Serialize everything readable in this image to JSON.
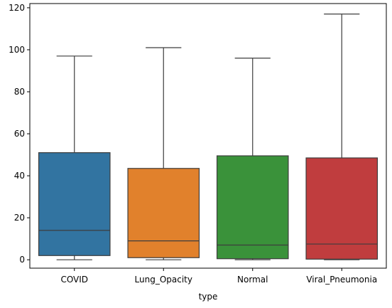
{
  "chart_data": {
    "type": "box",
    "xlabel": "type",
    "ylabel": "",
    "ylim": [
      -4,
      122
    ],
    "yticks": [
      0,
      20,
      40,
      60,
      80,
      100,
      120
    ],
    "categories": [
      "COVID",
      "Lung_Opacity",
      "Normal",
      "Viral_Pneumonia"
    ],
    "boxes": [
      {
        "category": "COVID",
        "min": 0,
        "q1": 2,
        "median": 14,
        "q3": 51,
        "max": 97,
        "color": "#3274a1"
      },
      {
        "category": "Lung_Opacity",
        "min": 0,
        "q1": 1,
        "median": 9,
        "q3": 43.5,
        "max": 101,
        "color": "#e1812c"
      },
      {
        "category": "Normal",
        "min": 0,
        "q1": 0.5,
        "median": 7,
        "q3": 49.5,
        "max": 96,
        "color": "#3a923a"
      },
      {
        "category": "Viral_Pneumonia",
        "min": 0,
        "q1": 0.3,
        "median": 7.5,
        "q3": 48.5,
        "max": 117,
        "color": "#c03d3e"
      }
    ],
    "grid": false,
    "legend": "none"
  }
}
